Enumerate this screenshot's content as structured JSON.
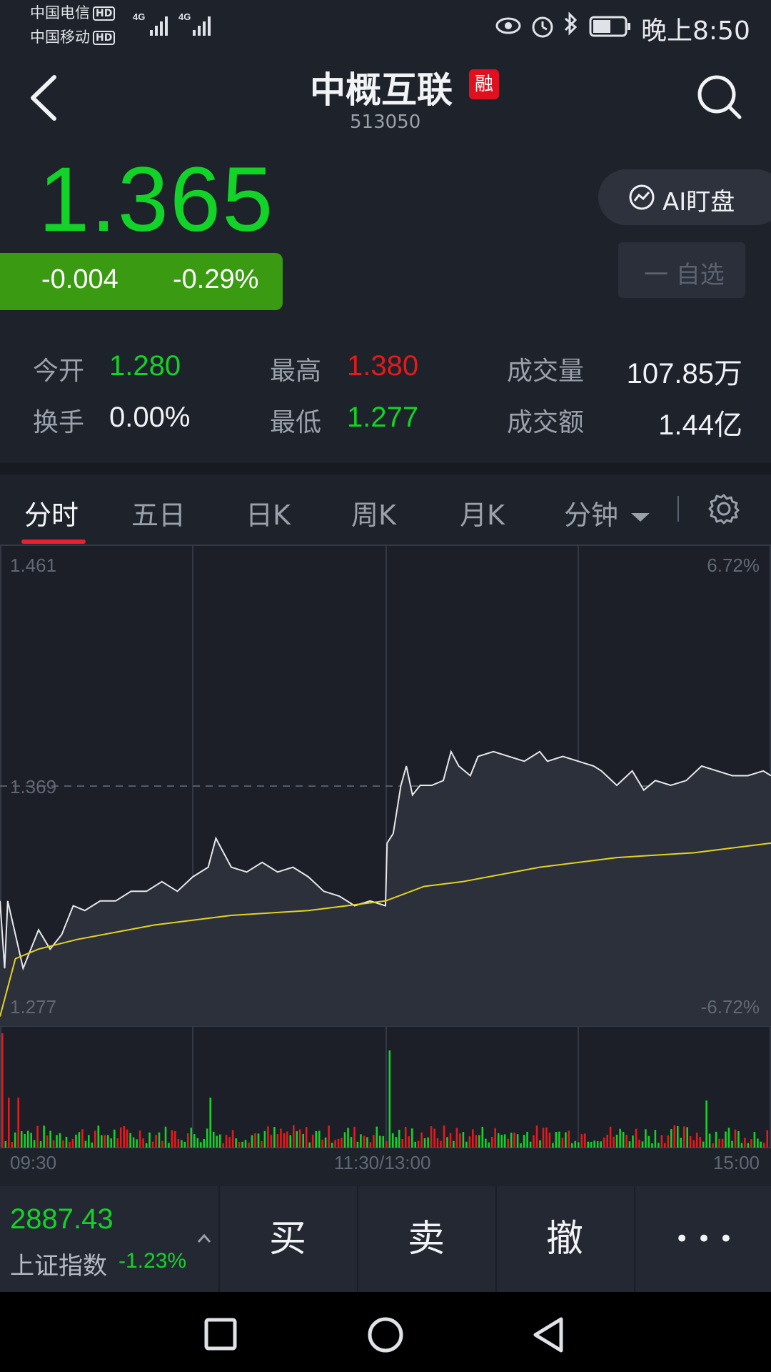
{
  "status_bar": {
    "carrier1": "中国电信",
    "carrier2": "中国移动",
    "hd": "HD",
    "network": "4G",
    "time": "晚上8:50"
  },
  "header": {
    "title": "中概互联",
    "badge": "融",
    "code": "513050"
  },
  "quote": {
    "price": "1.365",
    "change": "-0.004",
    "change_pct": "-0.29%",
    "ai_button": "AI盯盘",
    "watch_button": "一 自选"
  },
  "stats": {
    "open_label": "今开",
    "open_value": "1.280",
    "high_label": "最高",
    "high_value": "1.380",
    "volume_label": "成交量",
    "volume_value": "107.85万",
    "turnover_label": "换手",
    "turnover_value": "0.00%",
    "low_label": "最低",
    "low_value": "1.277",
    "amount_label": "成交额",
    "amount_value": "1.44亿"
  },
  "tabs": [
    "分时",
    "五日",
    "日K",
    "周K",
    "月K",
    "分钟"
  ],
  "chart": {
    "y_top_left": "1.461",
    "y_mid_left": "1.369",
    "y_bottom_left": "1.277",
    "y_top_right": "6.72%",
    "y_bottom_right": "-6.72%",
    "x_start": "09:30",
    "x_mid": "11:30/13:00",
    "x_end": "15:00"
  },
  "bottom": {
    "index_value": "2887.43",
    "index_name": "上证指数",
    "index_pct": "-1.23%",
    "buy": "买",
    "sell": "卖",
    "cancel": "撤",
    "more": "• • •"
  },
  "colors": {
    "up": "#e51a1a",
    "down": "#12d327",
    "price_line": "#e8e8ea",
    "avg_line": "#e5d21f",
    "background": "#1e222b"
  }
}
